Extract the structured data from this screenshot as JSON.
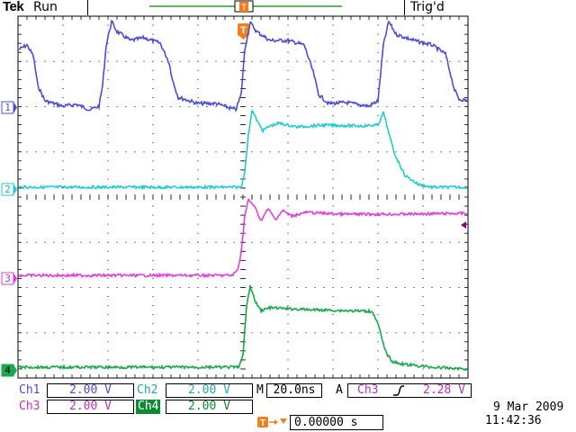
{
  "header": {
    "brand": "Tek",
    "run_state": "Run",
    "trigger_status": "Trig'd"
  },
  "trigger_marker_label": "T",
  "channels": [
    {
      "id": "1",
      "color": "#4d4dd8"
    },
    {
      "id": "2",
      "color": "#22cccc"
    },
    {
      "id": "3",
      "color": "#e040e0"
    },
    {
      "id": "4",
      "color": "#1aa84a"
    }
  ],
  "settings": {
    "ch1_label": "Ch1",
    "ch1_scale": "2.00 V",
    "ch2_label": "Ch2",
    "ch2_scale": "2.00 V",
    "ch3_label": "Ch3",
    "ch3_scale": "2.00 V",
    "ch4_label": "Ch4",
    "ch4_scale": "2.00 V",
    "timebase_prefix": "M",
    "timebase": "20.0ns",
    "trigger_mode": "A",
    "trigger_source": "Ch3",
    "trigger_level": "2.28 V",
    "trigger_position": "0.00000 s"
  },
  "datetime": {
    "date": "9 Mar  2009",
    "time": "11:42:36"
  },
  "colors": {
    "ch1": "#4d4dd8",
    "ch2": "#22cccc",
    "ch3": "#e040e0",
    "ch4": "#1aa84a",
    "ch4_active": "#118833",
    "trigger_orange": "#f07e1e",
    "record_bar": "#2e9e2e",
    "ref_level": "#800080"
  }
}
